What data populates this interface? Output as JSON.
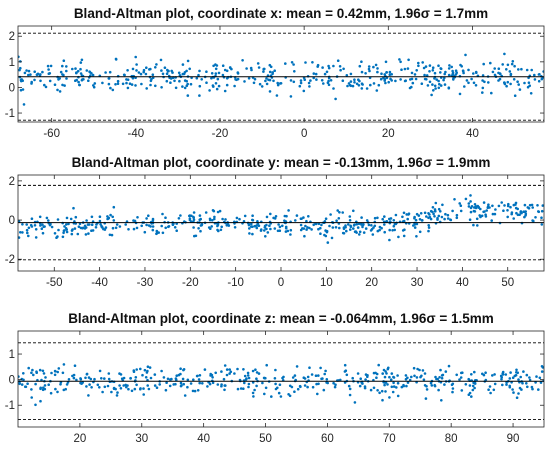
{
  "chart_data": [
    {
      "type": "scatter",
      "title": "Bland-Altman plot, coordinate x: mean = 0.42mm, 1.96σ = 1.7mm",
      "xlabel": "",
      "ylabel": "",
      "xlim": [
        -68,
        57
      ],
      "ylim": [
        -1.35,
        2.4
      ],
      "xticks": [
        -60,
        -40,
        -20,
        0,
        20,
        40
      ],
      "yticks": [
        -1,
        0,
        1,
        2
      ],
      "mean_line": 0.42,
      "limit_lines": [
        2.12,
        -1.28
      ],
      "point_color": "#0072BD",
      "grid": false,
      "sample_count": 520,
      "trend": [
        [
          -68,
          0.38
        ],
        [
          57,
          0.45
        ]
      ],
      "spread_sd": 0.3
    },
    {
      "type": "scatter",
      "title": "Bland-Altman plot, coordinate y: mean = -0.13mm, 1.96σ = 1.9mm",
      "xlabel": "",
      "ylabel": "",
      "xlim": [
        -58,
        58
      ],
      "ylim": [
        -2.6,
        2.3
      ],
      "xticks": [
        -50,
        -40,
        -30,
        -20,
        -10,
        0,
        10,
        20,
        30,
        40,
        50
      ],
      "yticks": [
        -2,
        0,
        2
      ],
      "mean_line": -0.13,
      "limit_lines": [
        1.77,
        -2.03
      ],
      "point_color": "#0072BD",
      "grid": false,
      "sample_count": 560,
      "trend": [
        [
          -58,
          -0.35
        ],
        [
          -40,
          -0.3
        ],
        [
          -10,
          -0.2
        ],
        [
          10,
          -0.3
        ],
        [
          30,
          -0.1
        ],
        [
          40,
          0.55
        ],
        [
          58,
          0.4
        ]
      ],
      "spread_sd": 0.3
    },
    {
      "type": "scatter",
      "title": "Bland-Altman plot, coordinate z: mean = -0.064mm, 1.96σ = 1.5mm",
      "xlabel": "",
      "ylabel": "",
      "xlim": [
        10,
        95
      ],
      "ylim": [
        -1.85,
        1.9
      ],
      "xticks": [
        20,
        30,
        40,
        50,
        60,
        70,
        80,
        90
      ],
      "yticks": [
        -1,
        0,
        1
      ],
      "mean_line": -0.064,
      "limit_lines": [
        1.44,
        -1.56
      ],
      "point_color": "#0072BD",
      "grid": false,
      "sample_count": 500,
      "trend": [
        [
          10,
          -0.05
        ],
        [
          95,
          -0.08
        ]
      ],
      "spread_sd": 0.28
    }
  ]
}
